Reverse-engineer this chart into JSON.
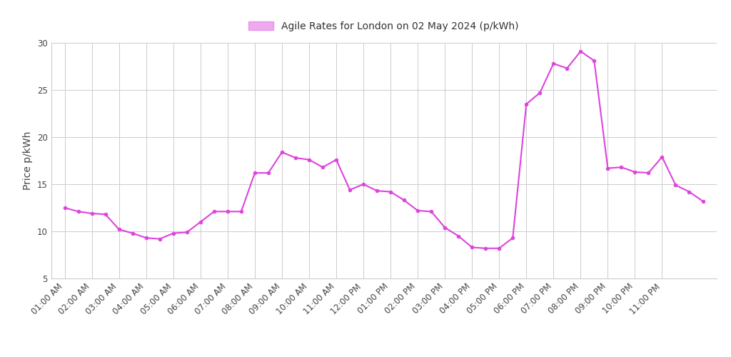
{
  "title": "Agile Rates for London on 02 May 2024 (p/kWh)",
  "ylabel": "Price p/kWh",
  "line_color": "#dd44dd",
  "marker_color": "#dd44dd",
  "background_color": "#ffffff",
  "grid_color": "#cccccc",
  "ylim": [
    5,
    30
  ],
  "yticks": [
    5,
    10,
    15,
    20,
    25,
    30
  ],
  "hour_labels": [
    "01:00 AM",
    "02:00 AM",
    "03:00 AM",
    "04:00 AM",
    "05:00 AM",
    "06:00 AM",
    "07:00 AM",
    "08:00 AM",
    "09:00 AM",
    "10:00 AM",
    "11:00 AM",
    "12:00 PM",
    "01:00 PM",
    "02:00 PM",
    "03:00 PM",
    "04:00 PM",
    "05:00 PM",
    "06:00 PM",
    "07:00 PM",
    "08:00 PM",
    "09:00 PM",
    "10:00 PM",
    "11:00 PM"
  ],
  "raw_values": [
    12.5,
    12.1,
    11.9,
    11.8,
    10.2,
    9.8,
    9.3,
    9.2,
    9.8,
    9.9,
    11.0,
    12.1,
    12.1,
    12.1,
    16.2,
    16.2,
    18.4,
    17.8,
    17.6,
    16.8,
    17.6,
    14.4,
    15.0,
    14.3,
    14.2,
    13.3,
    12.2,
    12.1,
    10.4,
    9.5,
    8.3,
    8.2,
    8.2,
    9.3,
    23.5,
    24.7,
    27.8,
    27.3,
    29.1,
    28.1,
    16.7,
    16.8,
    16.3,
    16.2,
    17.9,
    14.9,
    14.2,
    13.2
  ],
  "legend_patch_color": "#dd44dd",
  "title_fontsize": 11,
  "axis_label_fontsize": 10,
  "tick_fontsize": 8.5
}
